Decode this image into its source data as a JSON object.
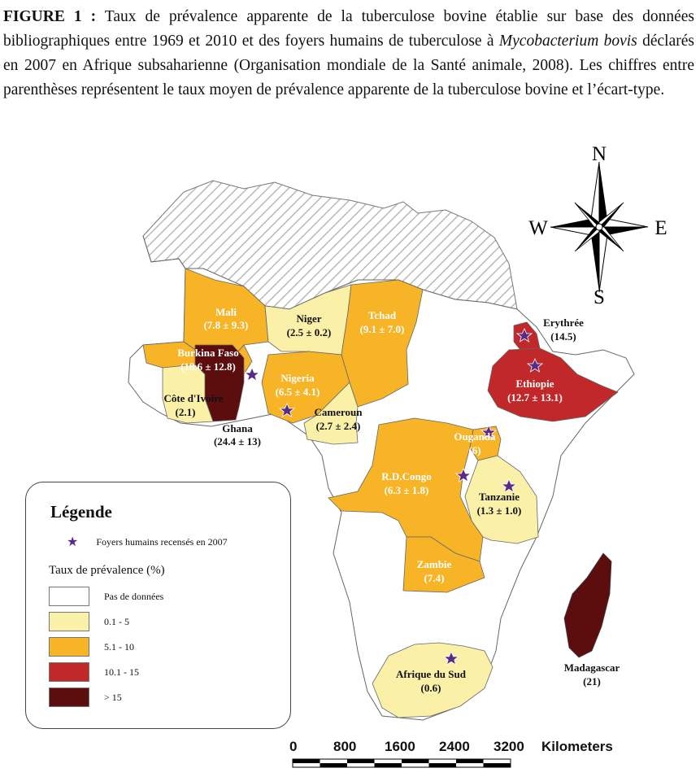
{
  "caption": {
    "label": "FIGURE 1 :",
    "part1": " Taux de prévalence apparente de la tuberculose bovine établie sur base des données bibliographiques entre 1969 et 2010 et des foyers humains de tuberculose à ",
    "species": "Mycobacterium bovis",
    "part2": " déclarés en 2007 en Afrique subsaharienne (Organisation mondiale de la Santé animale, 2008). Les chiffres entre parenthèses représentent le taux moyen de prévalence apparente de la tuberculose bovine et l’écart-type."
  },
  "compass": {
    "n": "N",
    "s": "S",
    "e": "E",
    "w": "W"
  },
  "colors": {
    "no_data": "#ffffff",
    "c1": "#fbf0a8",
    "c2": "#f8b427",
    "c3": "#c0282a",
    "c4": "#5c0d0d",
    "star": "#5b2a86",
    "hatch": "#bbbbbb"
  },
  "countries": {
    "mali": {
      "name": "Mali",
      "value": "(7.8 ± 9.3)",
      "class": "5.1 - 10"
    },
    "niger": {
      "name": "Niger",
      "value": "(2.5 ± 0.2)",
      "class": "0.1 - 5"
    },
    "tchad": {
      "name": "Tchad",
      "value": "(9.1 ± 7.0)",
      "class": "5.1 - 10"
    },
    "burkina": {
      "name": "Burkina Faso",
      "value": "(18.6 ± 12.8)",
      "class": "> 15"
    },
    "nigeria": {
      "name": "Nigeria",
      "value": "(6.5 ± 4.1)",
      "class": "5.1 - 10"
    },
    "cote": {
      "name": "Côte d'Ivoire",
      "value": "(2.1)",
      "class": "0.1 - 5"
    },
    "ghana": {
      "name": "Ghana",
      "value": "(24.4 ± 13)",
      "class": "> 15"
    },
    "cameroun": {
      "name": "Cameroun",
      "value": "(2.7 ± 2.4)",
      "class": "0.1 - 5"
    },
    "erythree": {
      "name": "Erythrée",
      "value": "(14.5)",
      "class": "10.1 - 15"
    },
    "ethiopie": {
      "name": "Ethiopie",
      "value": "(12.7 ± 13.1)",
      "class": "10.1 - 15"
    },
    "ouganda": {
      "name": "Ouganda",
      "value": "(6)",
      "class": "5.1 - 10"
    },
    "rdc": {
      "name": "R.D.Congo",
      "value": "(6.3 ± 1.8)",
      "class": "5.1 - 10"
    },
    "tanzanie": {
      "name": "Tanzanie",
      "value": "(1.3 ± 1.0)",
      "class": "0.1 - 5"
    },
    "zambie": {
      "name": "Zambie",
      "value": "(7.4)",
      "class": "5.1 - 10"
    },
    "afsud": {
      "name": "Afrique du Sud",
      "value": "(0.6)",
      "class": "0.1 - 5"
    },
    "madagascar": {
      "name": "Madagascar",
      "value": "(21)",
      "class": "> 15"
    }
  },
  "legend": {
    "title": "Légende",
    "star_label": "Foyers humains recensés en 2007",
    "subtitle": "Taux de prévalence (%)",
    "items": [
      {
        "label": "Pas de données",
        "color": "#ffffff"
      },
      {
        "label": "0.1 - 5",
        "color": "#fbf0a8"
      },
      {
        "label": "5.1 - 10",
        "color": "#f8b427"
      },
      {
        "label": "10.1 - 15",
        "color": "#c0282a"
      },
      {
        "label": "> 15",
        "color": "#5c0d0d"
      }
    ]
  },
  "scale": {
    "ticks": [
      "0",
      "800",
      "1600",
      "2400",
      "3200"
    ],
    "unit": "Kilometers"
  }
}
